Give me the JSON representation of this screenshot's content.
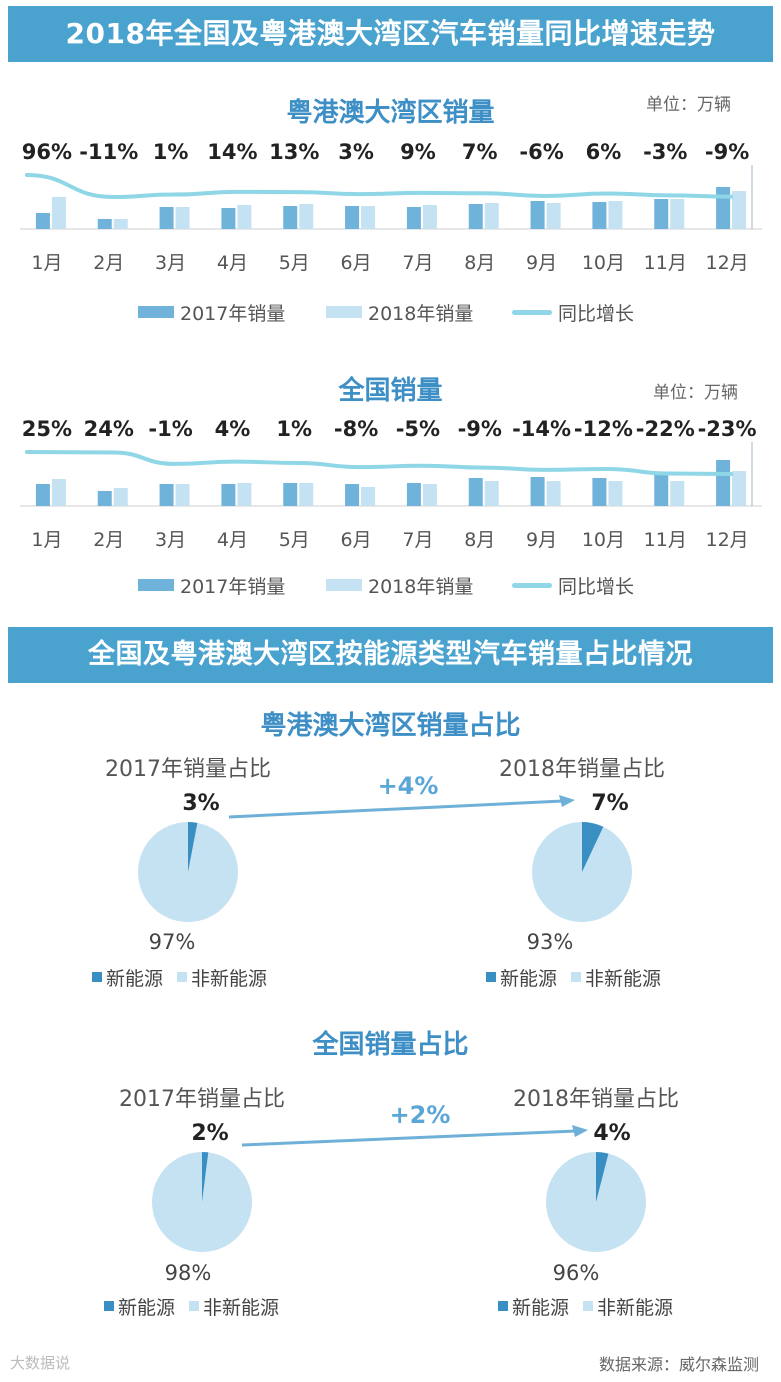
{
  "banners": {
    "top": "2018年全国及粤港澳大湾区汽车销量同比增速走势",
    "bottom": "全国及粤港澳大湾区按能源类型汽车销量占比情况"
  },
  "unit_label": "单位：万辆",
  "legend": {
    "s2017": "2017年销量",
    "s2018": "2018年销量",
    "growth": "同比增长"
  },
  "pie_legend": {
    "new": "新能源",
    "non": "非新能源"
  },
  "pie_subtitles": {
    "y2017": "2017年销量占比",
    "y2018": "2018年销量占比"
  },
  "colors": {
    "banner": "#4aa3cf",
    "bar2017": "#6fb3db",
    "bar2018": "#c5e2f2",
    "line": "#8fd6e6",
    "pieNew": "#3a8fc2",
    "pieNon": "#c5e2f2",
    "title": "#3e8fc6"
  },
  "chart_data": [
    {
      "type": "bar",
      "title": "粤港澳大湾区销量",
      "categories": [
        "1月",
        "2月",
        "3月",
        "4月",
        "5月",
        "6月",
        "7月",
        "8月",
        "9月",
        "10月",
        "11月",
        "12月"
      ],
      "series": [
        {
          "name": "2017年销量",
          "values": [
            8,
            5,
            11,
            10.5,
            11.5,
            11.5,
            11,
            12.5,
            14,
            13.5,
            15,
            21
          ]
        },
        {
          "name": "2018年销量",
          "values": [
            16,
            5,
            11,
            12,
            12.5,
            11.5,
            12,
            13,
            13,
            14,
            15,
            19
          ]
        }
      ],
      "growth": {
        "name": "同比增长",
        "values": [
          96,
          -11,
          1,
          14,
          13,
          3,
          9,
          7,
          -6,
          6,
          -3,
          -9
        ],
        "labels": [
          "96%",
          "-11%",
          "1%",
          "14%",
          "13%",
          "3%",
          "9%",
          "7%",
          "-6%",
          "6%",
          "-3%",
          "-9%"
        ]
      },
      "ylim": [
        0,
        30
      ],
      "legend_position": "bottom"
    },
    {
      "type": "bar",
      "title": "全国销量",
      "categories": [
        "1月",
        "2月",
        "3月",
        "4月",
        "5月",
        "6月",
        "7月",
        "8月",
        "9月",
        "10月",
        "11月",
        "12月"
      ],
      "series": [
        {
          "name": "2017年销量",
          "values": [
            11,
            7.5,
            11,
            11,
            11.5,
            11,
            11.5,
            14,
            14.5,
            14,
            16,
            23
          ]
        },
        {
          "name": "2018年销量",
          "values": [
            13.5,
            9,
            11,
            11.5,
            11.5,
            9.5,
            11,
            12.5,
            12.5,
            12.5,
            12.5,
            17.5
          ]
        }
      ],
      "growth": {
        "name": "同比增长",
        "values": [
          25,
          24,
          -1,
          4,
          1,
          -8,
          -5,
          -9,
          -14,
          -12,
          -22,
          -23
        ],
        "labels": [
          "25%",
          "24%",
          "-1%",
          "4%",
          "1%",
          "-8%",
          "-5%",
          "-9%",
          "-14%",
          "-12%",
          "-22%",
          "-23%"
        ]
      },
      "ylim": [
        0,
        30
      ],
      "legend_position": "bottom"
    },
    {
      "type": "pie",
      "title": "粤港澳大湾区销量占比",
      "pies": [
        {
          "label": "2017年销量占比",
          "new": 3,
          "non": 97,
          "new_label": "3%",
          "non_label": "97%"
        },
        {
          "label": "2018年销量占比",
          "new": 7,
          "non": 93,
          "new_label": "7%",
          "non_label": "93%"
        }
      ],
      "change": "+4%"
    },
    {
      "type": "pie",
      "title": "全国销量占比",
      "pies": [
        {
          "label": "2017年销量占比",
          "new": 2,
          "non": 98,
          "new_label": "2%",
          "non_label": "98%"
        },
        {
          "label": "2018年销量占比",
          "new": 4,
          "non": 96,
          "new_label": "4%",
          "non_label": "96%"
        }
      ],
      "change": "+2%"
    }
  ],
  "source": "数据来源：威尔森监测",
  "watermark": "大数据说"
}
